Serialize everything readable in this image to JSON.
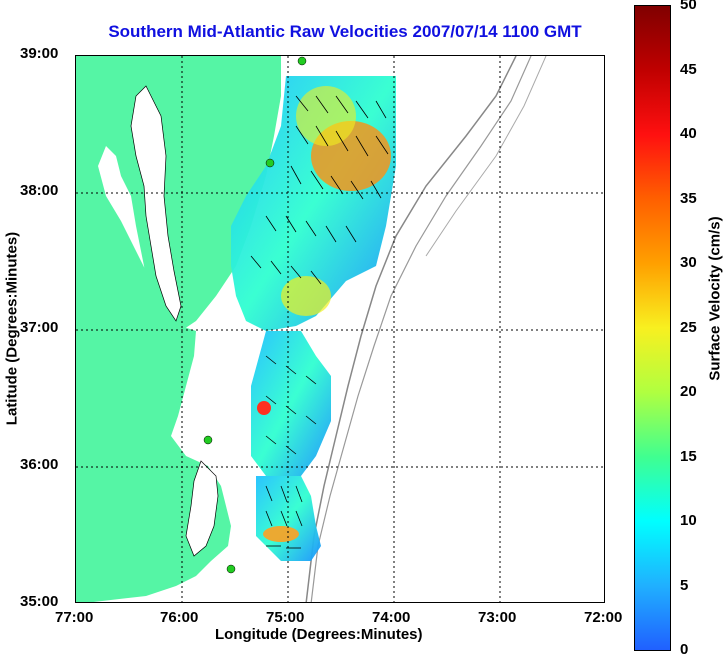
{
  "title": "Southern Mid-Atlantic Raw Velocities 2007/07/14 1100 GMT",
  "xaxis": {
    "label": "Longitude (Degrees:Minutes)",
    "ticks": [
      "77:00",
      "76:00",
      "75:00",
      "74:00",
      "73:00",
      "72:00"
    ]
  },
  "yaxis": {
    "label": "Latitude (Degrees:Minutes)",
    "ticks": [
      "39:00",
      "38:00",
      "37:00",
      "36:00",
      "35:00"
    ]
  },
  "colorbar": {
    "label": "Surface Velocity (cm/s)",
    "ticks": [
      "50",
      "45",
      "40",
      "35",
      "30",
      "25",
      "20",
      "15",
      "10",
      "5",
      "0"
    ]
  },
  "colors": {
    "land": "#55f5a5",
    "title": "#1010e0",
    "station": "#22cc22"
  }
}
